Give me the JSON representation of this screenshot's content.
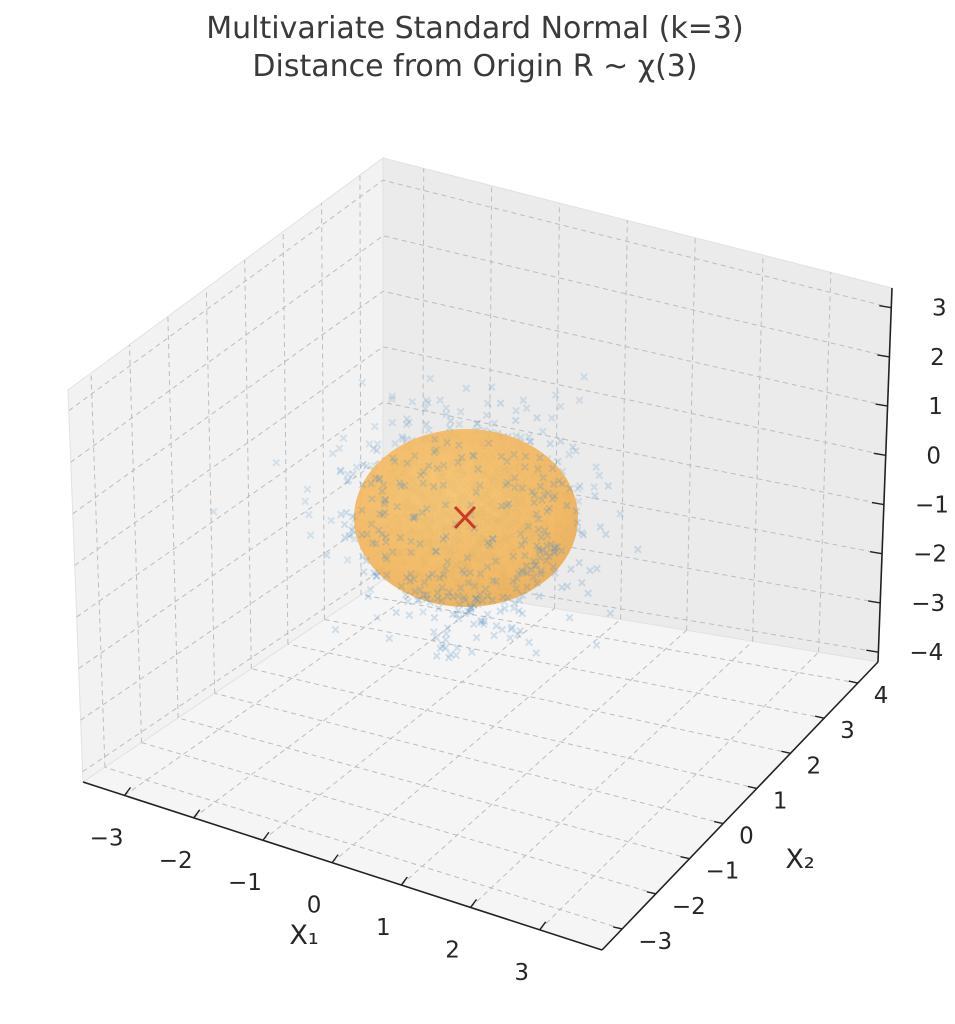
{
  "chart_data": {
    "type": "scatter",
    "title_line1": "Multivariate Standard Normal (k=3)",
    "title_line2": "Distance from Origin R ~ χ(3)",
    "xlabel": "X₁",
    "ylabel": "X₂",
    "zlabel": "",
    "x_ticks": [
      "−3",
      "−2",
      "−1",
      "0",
      "1",
      "2",
      "3"
    ],
    "x_tick_values": [
      -3,
      -2,
      -1,
      0,
      1,
      2,
      3
    ],
    "y_ticks": [
      "−3",
      "−2",
      "−1",
      "0",
      "1",
      "2",
      "3",
      "4"
    ],
    "y_tick_values": [
      -3,
      -2,
      -1,
      0,
      1,
      2,
      3,
      4
    ],
    "z_ticks": [
      "−4",
      "−3",
      "−2",
      "−1",
      "0",
      "1",
      "2",
      "3"
    ],
    "z_tick_values": [
      -4,
      -3,
      -2,
      -1,
      0,
      1,
      2,
      3
    ],
    "xlim": [
      -3.6,
      3.9
    ],
    "ylim": [
      -3.6,
      4.6
    ],
    "zlim": [
      -4.2,
      3.4
    ],
    "grid": true,
    "series": [
      {
        "kind": "samples",
        "marker": "x",
        "color": "#4c8cc4",
        "distribution": "standard normal, 3 dimensions"
      },
      {
        "kind": "sphere",
        "center": [
          0,
          0,
          0
        ],
        "radius": 1.6,
        "color": "#f5b942"
      },
      {
        "kind": "origin",
        "marker": "x",
        "point": [
          0,
          0,
          0
        ],
        "color": "#cc3a24"
      }
    ]
  }
}
